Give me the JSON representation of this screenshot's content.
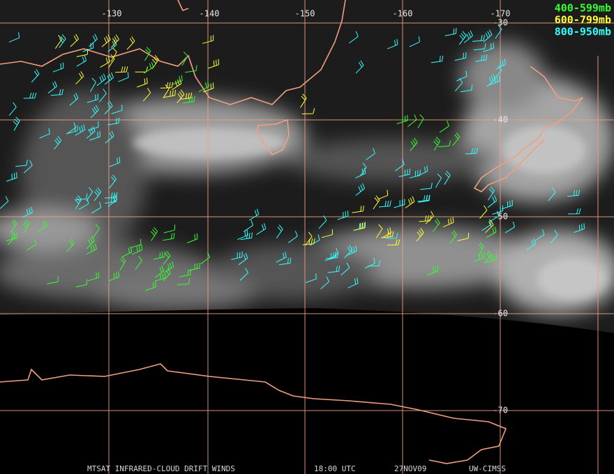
{
  "map": {
    "lon_labels": [
      "-130",
      "-140",
      "-150",
      "-160",
      "-170"
    ],
    "lat_labels": [
      "-30",
      "-40",
      "-50",
      "-60",
      "-70"
    ],
    "legend": [
      {
        "label": "400-599mb",
        "color": "#33ff33"
      },
      {
        "label": "600-799mb",
        "color": "#ffff33"
      },
      {
        "label": "800-950mb",
        "color": "#33ffff"
      }
    ],
    "footer": {
      "product": "MTSAT INFRARED-CLOUD DRIFT WINDS",
      "time": "18:00 UTC",
      "date": "27NOV09",
      "source": "UW-CIMSS"
    }
  }
}
